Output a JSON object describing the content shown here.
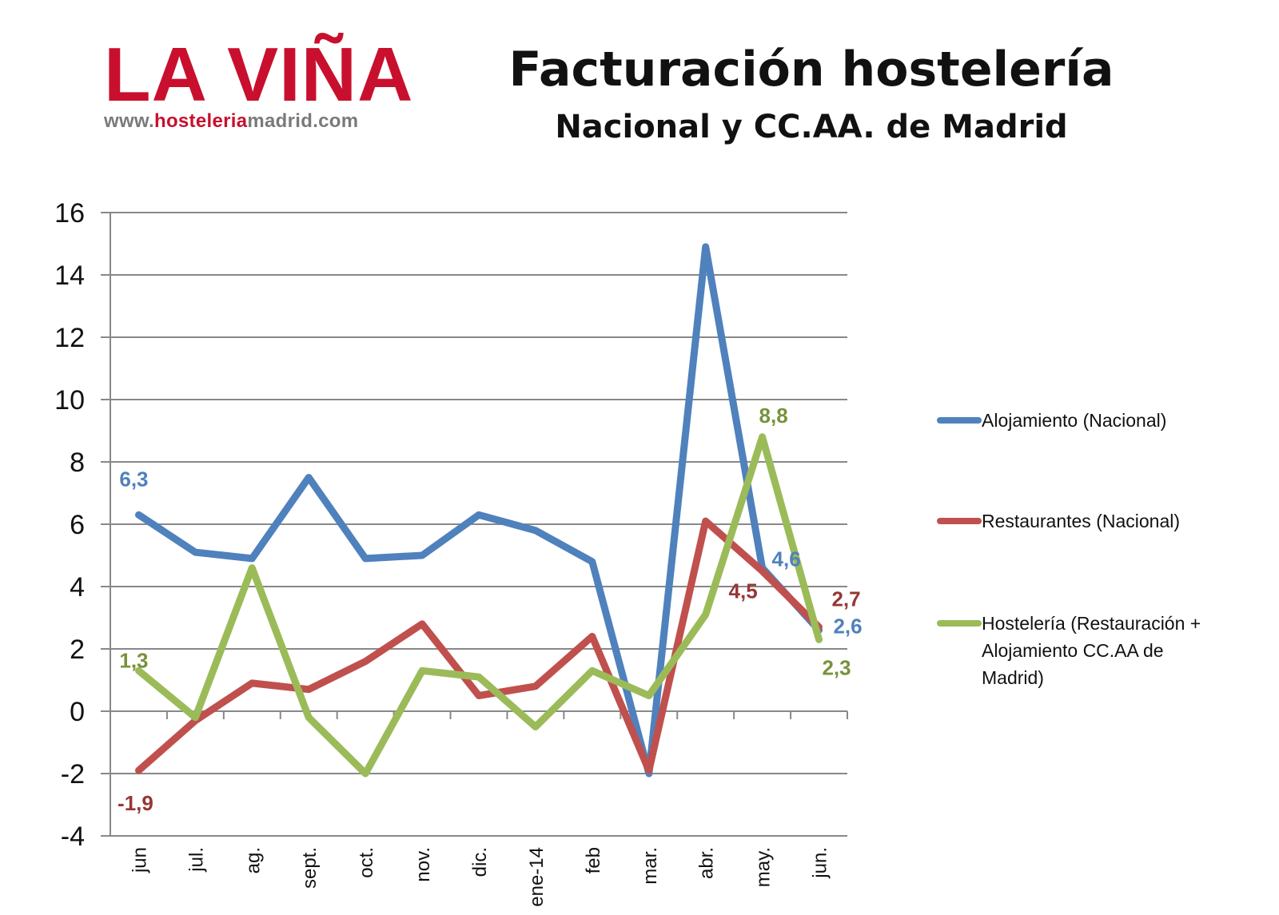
{
  "logo": {
    "brand": "LA VIÑA",
    "url_prefix": "www.",
    "url_highlight": "hosteleria",
    "url_suffix": "madrid.com"
  },
  "header": {
    "title": "Facturación hostelería",
    "subtitle": "Nacional y CC.AA. de Madrid"
  },
  "colors": {
    "alojamiento": "#4f81bd",
    "restaurantes": "#c0504d",
    "hosteleria": "#9bbb59",
    "label_alojamiento": "#4f81bd",
    "label_restaurantes": "#953735",
    "label_hosteleria": "#77933c",
    "grid": "#888888",
    "brand": "#c8102e"
  },
  "chart_data": {
    "type": "line",
    "categories": [
      "jun",
      "jul.",
      "ag.",
      "sept.",
      "oct.",
      "nov.",
      "dic.",
      "ene-14",
      "feb",
      "mar.",
      "abr.",
      "may.",
      "jun."
    ],
    "ylim": [
      -4,
      16
    ],
    "yticks": [
      "16",
      "14",
      "12",
      "10",
      "8",
      "6",
      "4",
      "2",
      "0",
      "-2",
      "-4"
    ],
    "grid": true,
    "legend_position": "right",
    "series": [
      {
        "name": "Alojamiento (Nacional)",
        "values": [
          6.3,
          5.1,
          4.9,
          7.5,
          4.9,
          5.0,
          6.3,
          5.8,
          4.8,
          -2.0,
          14.9,
          4.6,
          2.6
        ]
      },
      {
        "name": "Restaurantes (Nacional)",
        "values": [
          -1.9,
          -0.3,
          0.9,
          0.7,
          1.6,
          2.8,
          0.5,
          0.8,
          2.4,
          -1.9,
          6.1,
          4.5,
          2.7
        ]
      },
      {
        "name": "Hostelería (Restauración + Alojamiento CC.AA de Madrid)",
        "legend_lines": [
          "Hostelería (Restauración +",
          "Alojamiento CC.AA de",
          "Madrid)"
        ],
        "values": [
          1.3,
          -0.2,
          4.6,
          -0.2,
          -2.0,
          1.3,
          1.1,
          -0.5,
          1.3,
          0.5,
          3.1,
          8.8,
          2.3
        ]
      }
    ],
    "annotations": [
      {
        "text": "6,3",
        "series": 0,
        "index": 0
      },
      {
        "text": "4,6",
        "series": 0,
        "index": 11
      },
      {
        "text": "2,6",
        "series": 0,
        "index": 12
      },
      {
        "text": "-1,9",
        "series": 1,
        "index": 0
      },
      {
        "text": "4,5",
        "series": 1,
        "index": 11
      },
      {
        "text": "2,7",
        "series": 1,
        "index": 12
      },
      {
        "text": "1,3",
        "series": 2,
        "index": 0
      },
      {
        "text": "8,8",
        "series": 2,
        "index": 11
      },
      {
        "text": "2,3",
        "series": 2,
        "index": 12
      }
    ]
  }
}
